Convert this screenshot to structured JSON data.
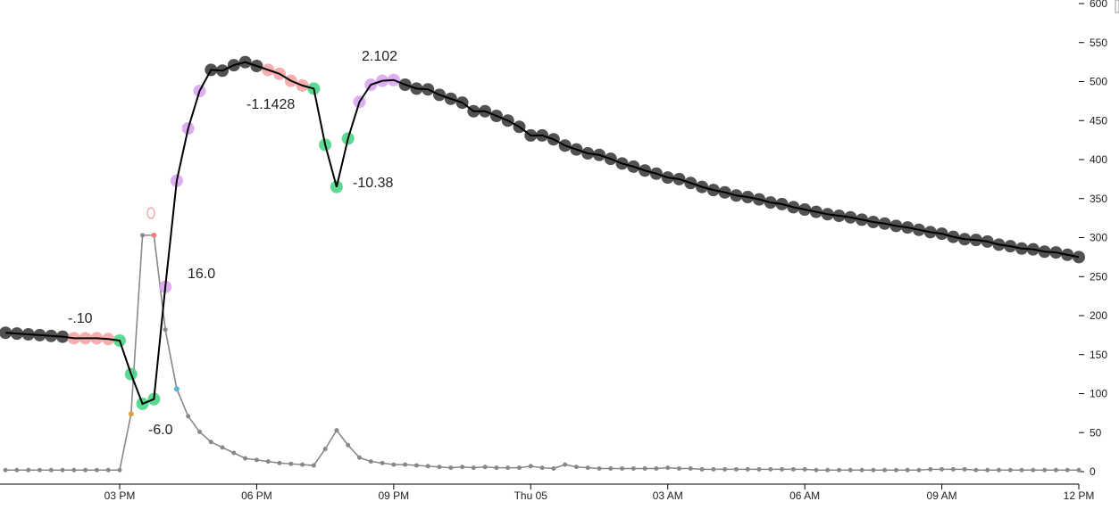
{
  "chart_data": {
    "type": "line",
    "x": [
      12.5,
      12.75,
      13,
      13.25,
      13.5,
      13.75,
      14,
      14.25,
      14.5,
      14.75,
      15,
      15.25,
      15.5,
      15.75,
      16,
      16.25,
      16.5,
      16.75,
      17,
      17.25,
      17.5,
      17.75,
      18,
      18.25,
      18.5,
      18.75,
      19,
      19.25,
      19.5,
      19.75,
      20,
      20.25,
      20.5,
      20.75,
      21,
      21.25,
      21.5,
      21.75,
      22,
      22.25,
      22.5,
      22.75,
      23,
      23.25,
      23.5,
      23.75,
      24,
      24.25,
      24.5,
      24.75,
      25,
      25.25,
      25.5,
      25.75,
      26,
      26.25,
      26.5,
      26.75,
      27,
      27.25,
      27.5,
      27.75,
      28,
      28.25,
      28.5,
      28.75,
      29,
      29.25,
      29.5,
      29.75,
      30,
      30.25,
      30.5,
      30.75,
      31,
      31.25,
      31.5,
      31.75,
      32,
      32.25,
      32.5,
      32.75,
      33,
      33.25,
      33.5,
      33.75,
      34,
      34.25,
      34.5,
      34.75,
      35,
      35.25,
      35.5,
      35.75,
      36
    ],
    "series": [
      {
        "color": "#888888",
        "values": [
          2,
          2,
          2,
          2,
          2,
          2,
          2,
          2,
          2,
          2,
          2,
          74,
          303,
          303,
          182,
          106,
          71,
          51,
          38,
          31,
          24,
          17,
          15,
          13,
          11,
          10,
          9,
          8,
          29,
          53,
          34,
          18,
          13,
          11,
          9,
          9,
          8,
          7,
          6,
          5,
          6,
          5,
          6,
          5,
          5,
          5,
          7,
          5,
          4,
          9,
          6,
          5,
          4,
          4,
          4,
          4,
          4,
          4,
          5,
          4,
          4,
          3,
          3,
          3,
          3,
          3,
          3,
          3,
          3,
          3,
          3,
          2,
          2,
          2,
          2,
          2,
          2,
          2,
          2,
          2,
          2,
          3,
          3,
          3,
          3,
          2,
          2,
          2,
          2,
          2,
          2,
          2,
          2,
          2,
          2
        ],
        "point_colors": [
          "#888888",
          "#888888",
          "#888888",
          "#888888",
          "#888888",
          "#888888",
          "#888888",
          "#888888",
          "#888888",
          "#888888",
          "#888888",
          "#e0a040",
          "#888888",
          "#f08080",
          "#888888",
          "#5ab4d0",
          "#888888",
          "#888888",
          "#888888",
          "#888888",
          "#888888",
          "#888888",
          "#888888",
          "#888888",
          "#888888",
          "#888888",
          "#888888",
          "#888888",
          "#888888",
          "#888888",
          "#888888",
          "#888888",
          "#888888",
          "#888888",
          "#888888",
          "#888888",
          "#888888",
          "#888888",
          "#888888",
          "#888888",
          "#888888",
          "#888888",
          "#888888",
          "#888888",
          "#888888",
          "#888888",
          "#888888",
          "#888888",
          "#888888",
          "#888888",
          "#888888",
          "#888888",
          "#888888",
          "#888888",
          "#888888",
          "#888888",
          "#888888",
          "#888888",
          "#888888",
          "#888888",
          "#888888",
          "#888888",
          "#888888",
          "#888888",
          "#888888",
          "#888888",
          "#888888",
          "#888888",
          "#888888",
          "#888888",
          "#888888",
          "#888888",
          "#888888",
          "#888888",
          "#888888",
          "#888888",
          "#888888",
          "#888888",
          "#888888",
          "#888888",
          "#888888",
          "#888888",
          "#888888",
          "#888888",
          "#888888",
          "#888888",
          "#888888",
          "#888888",
          "#888888",
          "#888888",
          "#888888",
          "#888888",
          "#888888",
          "#888888",
          "#888888"
        ]
      },
      {
        "color": "#000000",
        "values": [
          178,
          177,
          176,
          175,
          174,
          173,
          171,
          171,
          171,
          170,
          168,
          125,
          87,
          93,
          237,
          373,
          440,
          488,
          515,
          514,
          521,
          525,
          520,
          515,
          510,
          501,
          495,
          491,
          419,
          365,
          427,
          474,
          496,
          501,
          502,
          496,
          491,
          490,
          483,
          478,
          473,
          462,
          462,
          456,
          450,
          442,
          431,
          431,
          426,
          418,
          413,
          408,
          406,
          401,
          395,
          391,
          386,
          382,
          377,
          375,
          370,
          365,
          361,
          358,
          354,
          352,
          349,
          345,
          343,
          339,
          336,
          333,
          330,
          328,
          326,
          323,
          320,
          318,
          315,
          313,
          310,
          307,
          305,
          301,
          298,
          297,
          295,
          291,
          289,
          286,
          285,
          282,
          281,
          278,
          275
        ],
        "point_colors": [
          "#333333",
          "#333333",
          "#333333",
          "#333333",
          "#333333",
          "#333333",
          "#f4a0a0",
          "#f4a0a0",
          "#f4a0a0",
          "#f4a0a0",
          "#3fd27f",
          "#3fd27f",
          "#3fd27f",
          "#3fd27f",
          "#d8a0f0",
          "#d8a0f0",
          "#d8a0f0",
          "#d8a0f0",
          "#333333",
          "#333333",
          "#333333",
          "#333333",
          "#333333",
          "#f4a0a0",
          "#f4a0a0",
          "#f4a0a0",
          "#f4a0a0",
          "#3fd27f",
          "#3fd27f",
          "#3fd27f",
          "#3fd27f",
          "#d8a0f0",
          "#d8a0f0",
          "#d8a0f0",
          "#d8a0f0",
          "#333333",
          "#333333",
          "#333333",
          "#333333",
          "#333333",
          "#333333",
          "#333333",
          "#333333",
          "#333333",
          "#333333",
          "#333333",
          "#333333",
          "#333333",
          "#333333",
          "#333333",
          "#333333",
          "#333333",
          "#333333",
          "#333333",
          "#333333",
          "#333333",
          "#333333",
          "#333333",
          "#333333",
          "#333333",
          "#333333",
          "#333333",
          "#333333",
          "#333333",
          "#333333",
          "#333333",
          "#333333",
          "#333333",
          "#333333",
          "#333333",
          "#333333",
          "#333333",
          "#333333",
          "#333333",
          "#333333",
          "#333333",
          "#333333",
          "#333333",
          "#333333",
          "#333333",
          "#333333",
          "#333333",
          "#333333",
          "#333333",
          "#333333",
          "#333333",
          "#333333",
          "#333333",
          "#333333",
          "#333333",
          "#333333",
          "#333333",
          "#333333",
          "#333333",
          "#333333"
        ]
      }
    ],
    "annotations": [
      "-.10",
      "-6.0",
      "16.0",
      "-1.1428",
      "-10.38",
      "2.102"
    ],
    "xlim": [
      12.38,
      36
    ],
    "xticks": [
      {
        "value": 15,
        "label": "03 PM"
      },
      {
        "value": 18,
        "label": "06 PM"
      },
      {
        "value": 21,
        "label": "09 PM"
      },
      {
        "value": 24,
        "label": "Thu 05"
      },
      {
        "value": 27,
        "label": "03 AM"
      },
      {
        "value": 30,
        "label": "06 AM"
      },
      {
        "value": 33,
        "label": "09 AM"
      },
      {
        "value": 36,
        "label": "12 PM"
      }
    ],
    "ylim": [
      -16,
      600
    ],
    "yticks": [
      0,
      50,
      100,
      150,
      200,
      250,
      300,
      350,
      400,
      450,
      500,
      550,
      600
    ]
  }
}
